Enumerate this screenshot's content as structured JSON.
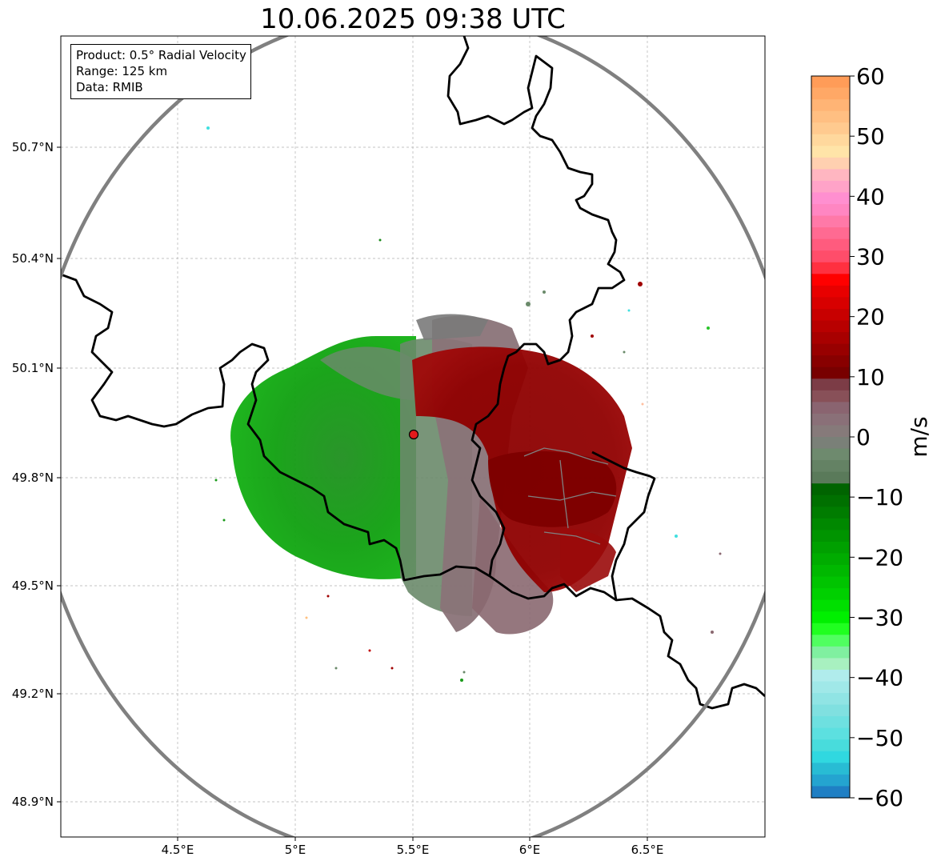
{
  "title": "10.06.2025 09:38 UTC",
  "info": {
    "product": "Product: 0.5° Radial Velocity",
    "range": "Range: 125 km",
    "data": "Data: RMIB"
  },
  "axes": {
    "x_ticks": [
      "4.5°E",
      "5°E",
      "5.5°E",
      "6°E",
      "6.5°E"
    ],
    "y_ticks": [
      "50.7°N",
      "50.4°N",
      "50.1°N",
      "49.8°N",
      "49.5°N",
      "49.2°N",
      "48.9°N"
    ]
  },
  "colorbar": {
    "label": "m/s",
    "ticks": [
      "60",
      "50",
      "40",
      "30",
      "20",
      "10",
      "0",
      "−10",
      "−20",
      "−30",
      "−40",
      "−50",
      "−60"
    ]
  },
  "colors": {
    "range_ring": "#808080",
    "border": "#000000",
    "radar_site": "#e31a1c"
  },
  "chart_data": {
    "type": "heatmap",
    "title": "10.06.2025 09:38 UTC",
    "xlabel": "",
    "ylabel": "",
    "x_range": [
      "4.0°E",
      "7.0°E"
    ],
    "y_range": [
      "48.8°N",
      "51.0°N"
    ],
    "colorbar_range": [
      -60,
      60
    ],
    "colorbar_unit": "m/s",
    "grid": true
  }
}
